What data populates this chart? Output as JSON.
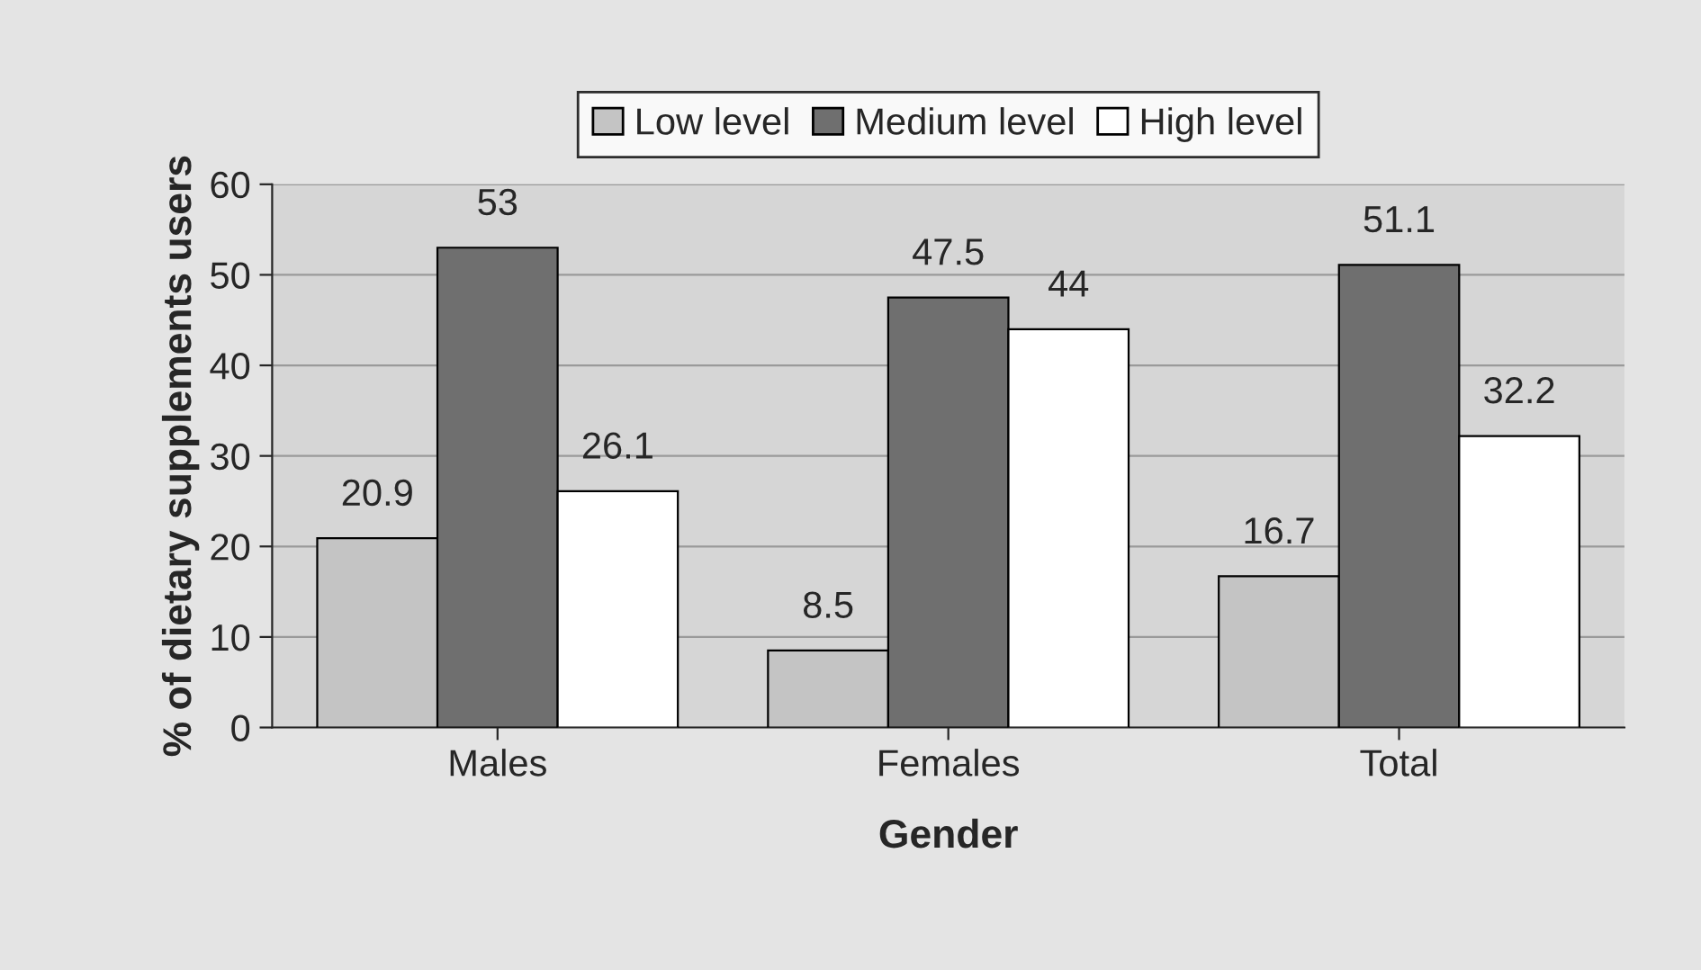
{
  "chart_data": {
    "type": "bar",
    "xlabel": "Gender",
    "ylabel": "% of dietary supplements users",
    "categories": [
      "Males",
      "Females",
      "Total"
    ],
    "series": [
      {
        "name": "Low level",
        "color": "#c4c4c4",
        "values": [
          20.9,
          8.5,
          16.7
        ]
      },
      {
        "name": "Medium level",
        "color": "#6f6f6f",
        "values": [
          53,
          47.5,
          51.1
        ]
      },
      {
        "name": "High level",
        "color": "#ffffff",
        "values": [
          26.1,
          44,
          32.2
        ]
      }
    ],
    "ylim": [
      0,
      60
    ],
    "yticks": [
      0,
      10,
      20,
      30,
      40,
      50,
      60
    ],
    "grid": "y",
    "legend": "top",
    "data_labels": true
  }
}
